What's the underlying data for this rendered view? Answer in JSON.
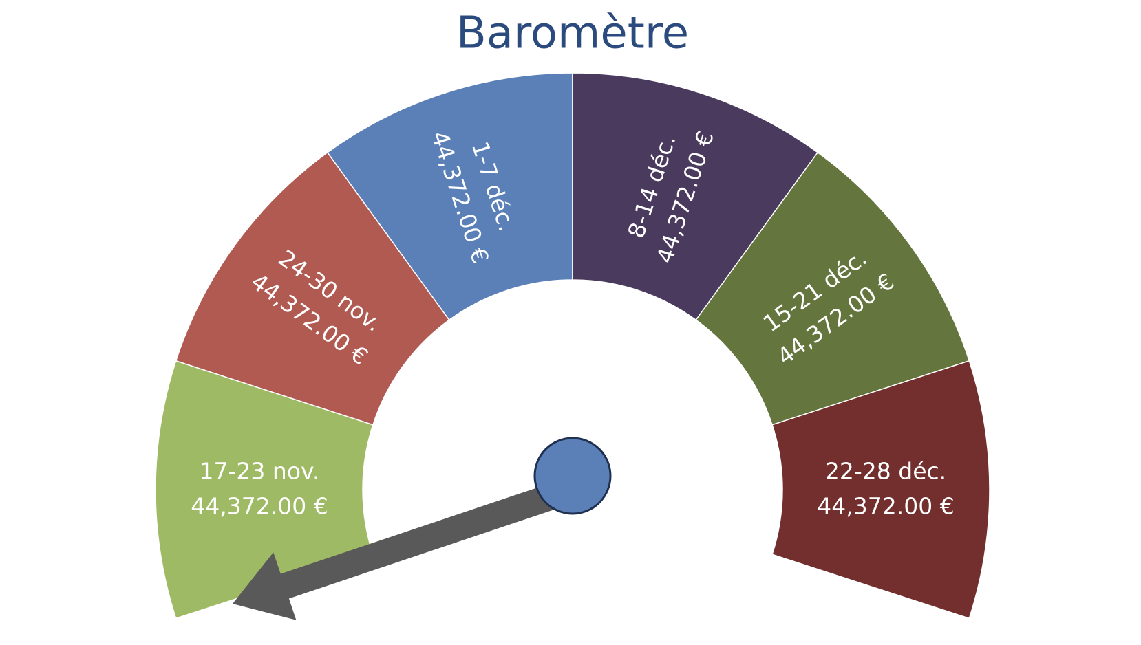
{
  "title": "Baromètre",
  "segments": [
    {
      "label": "17-23 nov.",
      "value": "44,372.00 €",
      "color": "#9fba65"
    },
    {
      "label": "24-30 nov.",
      "value": "44,372.00 €",
      "color": "#b05a52"
    },
    {
      "label": "1-7 déc.",
      "value": "44,372.00 €",
      "color": "#5a80b7"
    },
    {
      "label": "8-14 déc.",
      "value": "44,372.00 €",
      "color": "#4a3b5e"
    },
    {
      "label": "15-21 déc.",
      "value": "44,372.00 €",
      "color": "#64753d"
    },
    {
      "label": "22-28 déc.",
      "value": "44,372.00 €",
      "color": "#722f2e"
    }
  ]
}
